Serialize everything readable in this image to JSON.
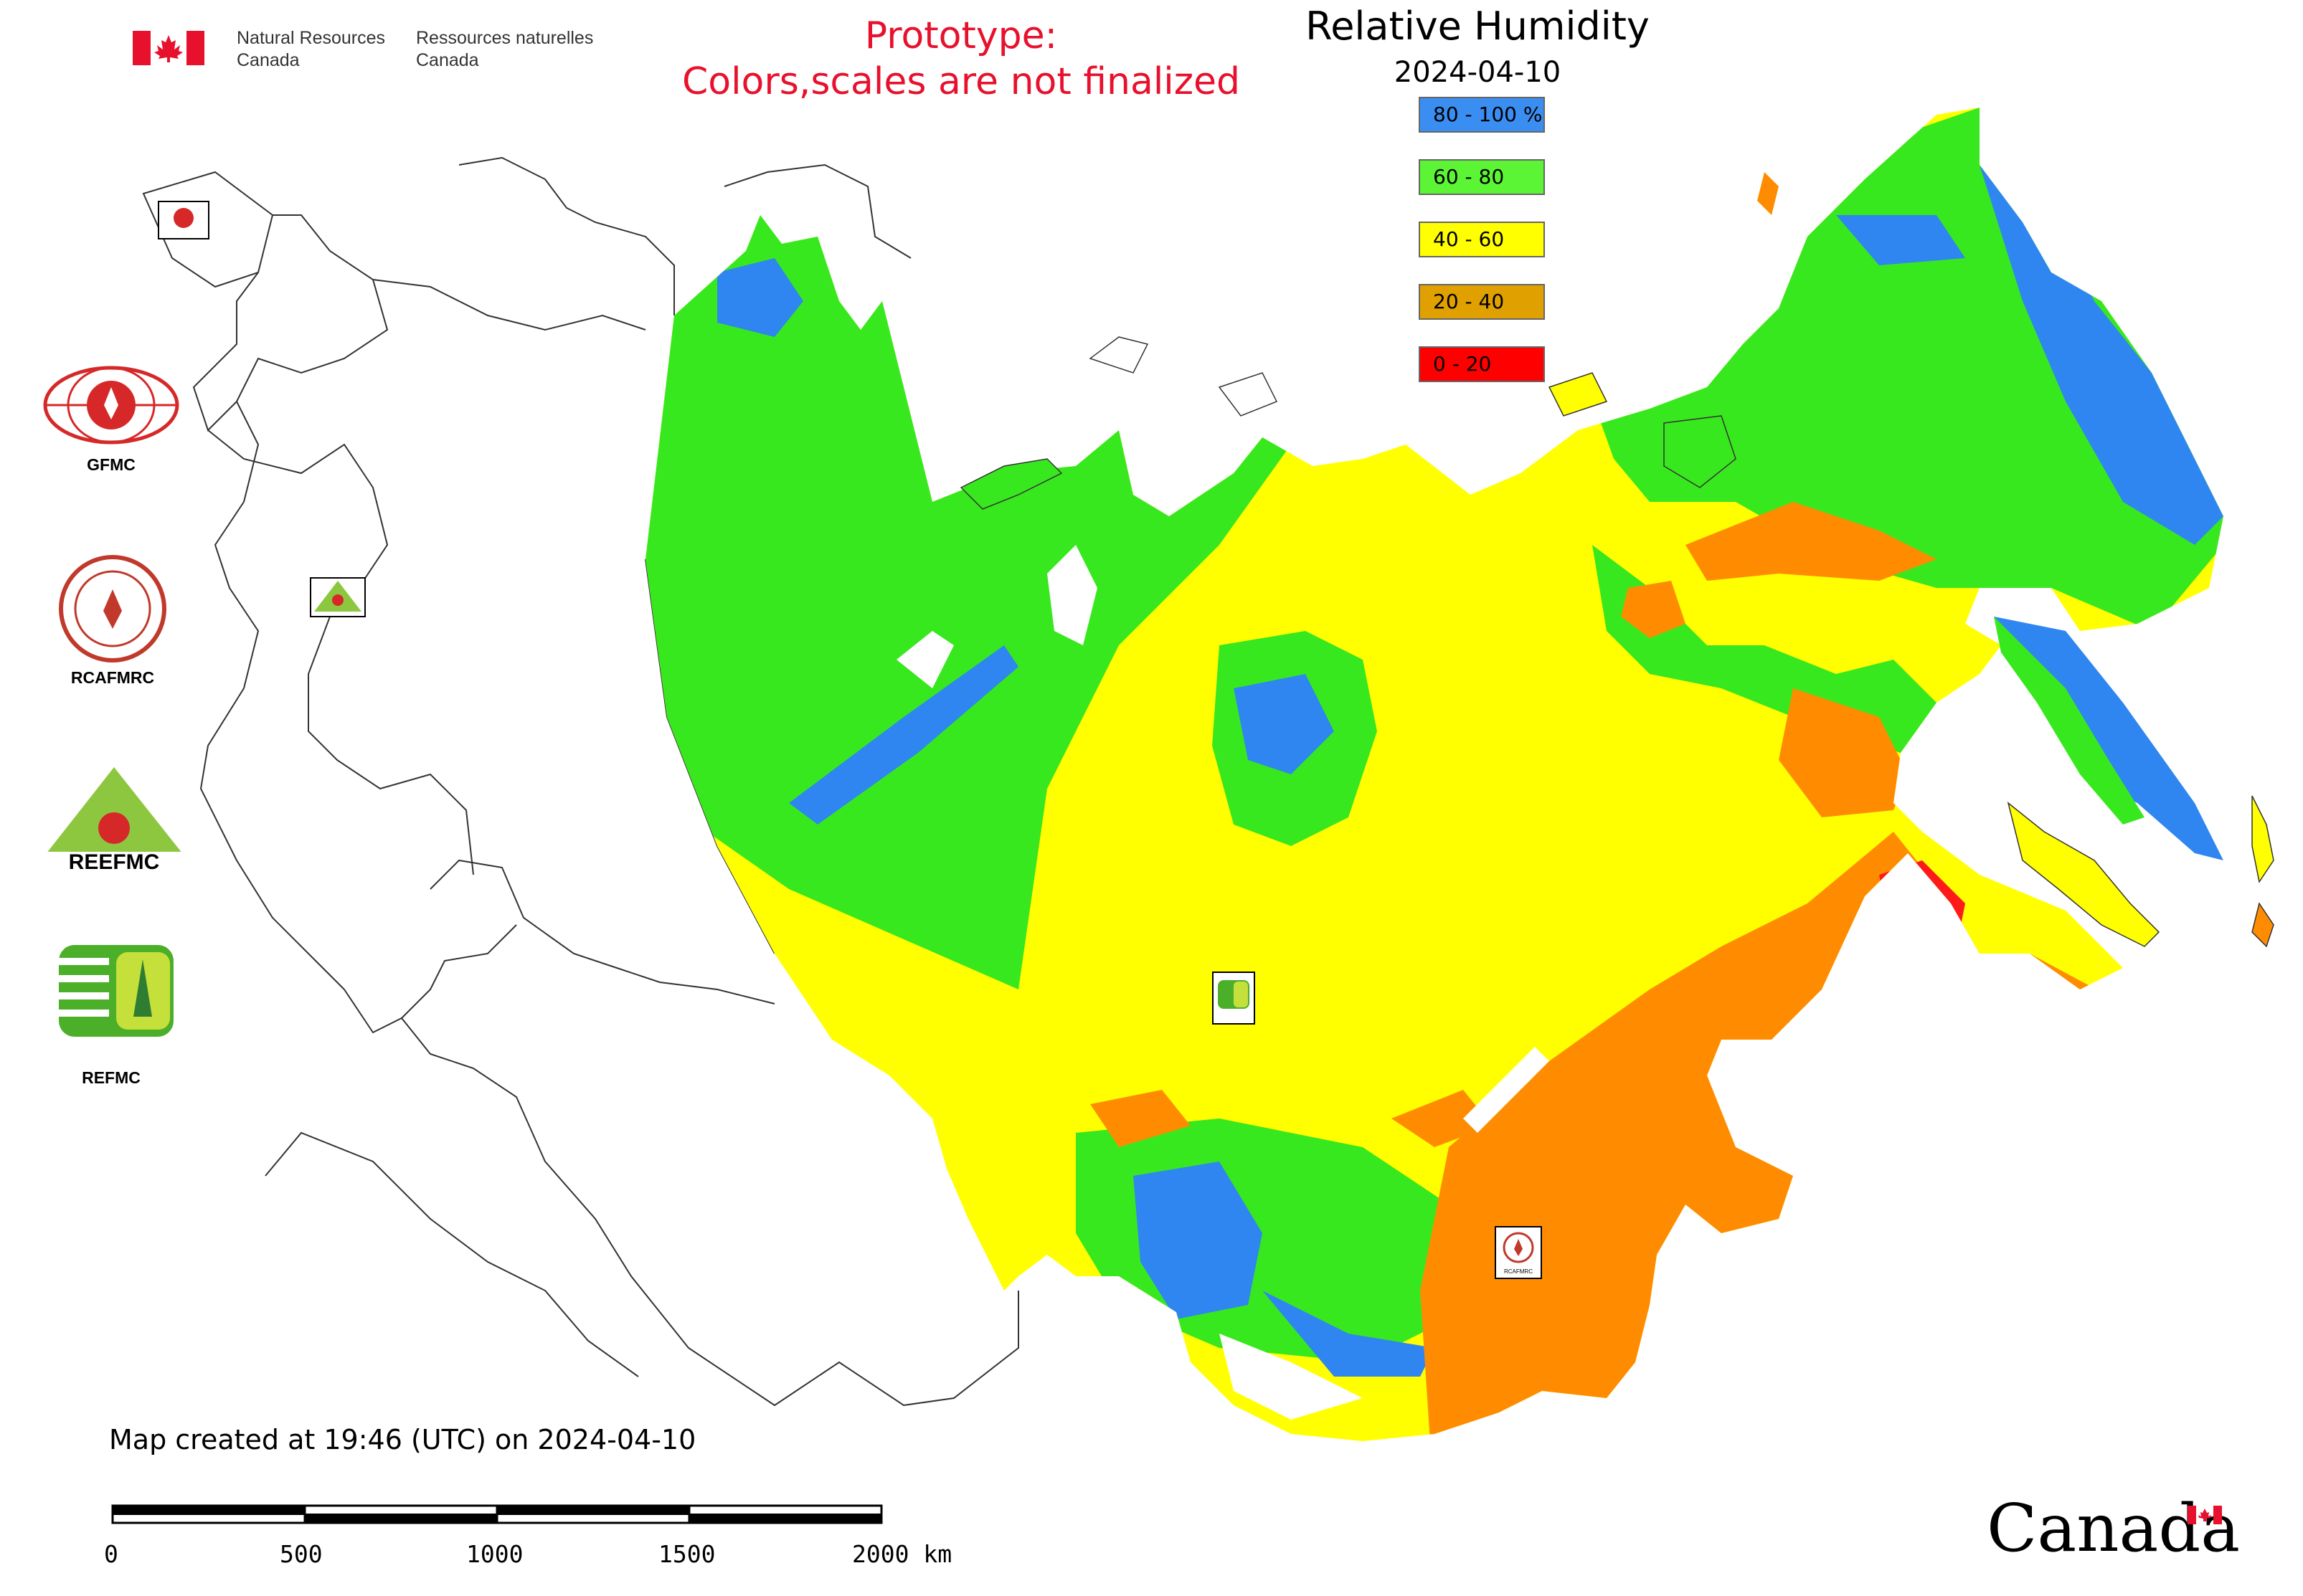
{
  "header": {
    "org_en_line1": "Natural Resources",
    "org_en_line2": "Canada",
    "org_fr_line1": "Ressources naturelles",
    "org_fr_line2": "Canada"
  },
  "notice": {
    "line1": "Prototype:",
    "line2": "Colors,scales are not finalized"
  },
  "legend": {
    "title": "Relative Humidity",
    "date": "2024-04-10",
    "items": [
      {
        "label": "80 - 100 %",
        "color": "#3a8ef2"
      },
      {
        "label": "60 - 80",
        "color": "#5cf535"
      },
      {
        "label": "40 - 60",
        "color": "#ffff00"
      },
      {
        "label": "20 - 40",
        "color": "#e0a000"
      },
      {
        "label": "0 - 20",
        "color": "#ff0000"
      }
    ]
  },
  "map_colors": {
    "blue": "#2f86f0",
    "green": "#38e81e",
    "yellow": "#ffff00",
    "orange": "#ff8c00",
    "red": "#ff1a1a",
    "border": "#333333"
  },
  "logos": {
    "gfmc": "GFMC",
    "rcafmrc": "RCAFMRC",
    "reefmc": "REEFMC",
    "refmc": "REFMC",
    "reefmc_wordmark": "REEFMC",
    "rcafmrc_badge": "RCAFMRC"
  },
  "footer": {
    "created": "Map created at 19:46 (UTC) on 2024-04-10",
    "scale_labels": [
      "0",
      "500",
      "1000",
      "1500",
      "2000 km"
    ],
    "wordmark": "Canada"
  }
}
